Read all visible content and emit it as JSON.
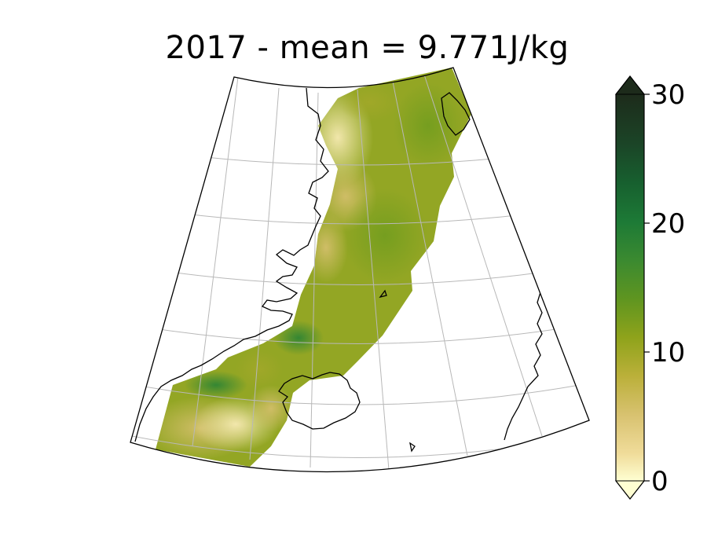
{
  "title": "2017 - mean = 9.771J/kg",
  "colorbar": {
    "min": 0,
    "max": 30,
    "extend": "both",
    "colormap": "yellow-olive-green-black",
    "ticks": [
      {
        "label": "0",
        "value": 0
      },
      {
        "label": "10",
        "value": 10
      },
      {
        "label": "20",
        "value": 20
      },
      {
        "label": "30",
        "value": 30
      }
    ],
    "colors": {
      "c0": "#fefed2",
      "c2": "#f0dc9a",
      "c5": "#d8c270",
      "c8": "#bbb03a",
      "c11": "#8fa31b",
      "c14": "#5f9520",
      "c17": "#3b8a30",
      "c20": "#1d7a36",
      "c23": "#17602f",
      "c26": "#1b4527",
      "c30": "#1d2b1b"
    }
  },
  "map": {
    "projection": "conic",
    "gridlines": true,
    "coastlines": true,
    "mean_value": 9.771,
    "units": "J/kg"
  }
}
